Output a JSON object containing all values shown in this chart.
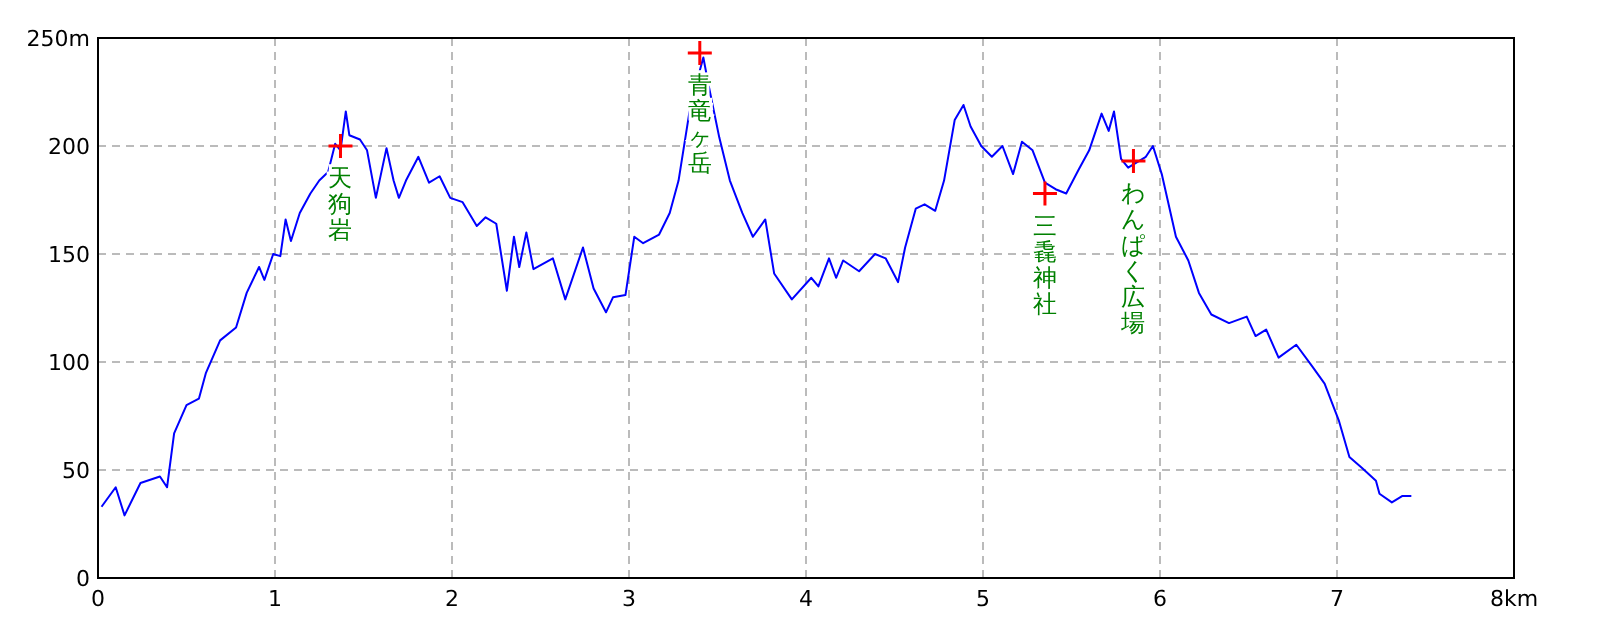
{
  "chart_data": {
    "type": "line",
    "x": [
      0.02,
      0.1,
      0.15,
      0.24,
      0.35,
      0.39,
      0.43,
      0.5,
      0.57,
      0.61,
      0.69,
      0.78,
      0.84,
      0.91,
      0.94,
      0.99,
      1.03,
      1.06,
      1.09,
      1.14,
      1.2,
      1.25,
      1.3,
      1.34,
      1.37,
      1.4,
      1.42,
      1.48,
      1.52,
      1.57,
      1.63,
      1.67,
      1.7,
      1.74,
      1.81,
      1.87,
      1.93,
      1.99,
      2.06,
      2.14,
      2.19,
      2.25,
      2.31,
      2.35,
      2.38,
      2.42,
      2.46,
      2.57,
      2.64,
      2.74,
      2.8,
      2.87,
      2.91,
      2.98,
      3.03,
      3.08,
      3.17,
      3.23,
      3.28,
      3.34,
      3.4,
      3.42,
      3.45,
      3.51,
      3.57,
      3.64,
      3.7,
      3.77,
      3.82,
      3.92,
      4.03,
      4.07,
      4.13,
      4.17,
      4.21,
      4.3,
      4.39,
      4.45,
      4.52,
      4.56,
      4.62,
      4.67,
      4.73,
      4.78,
      4.84,
      4.89,
      4.93,
      4.99,
      5.05,
      5.11,
      5.17,
      5.22,
      5.28,
      5.35,
      5.41,
      5.47,
      5.54,
      5.6,
      5.67,
      5.71,
      5.74,
      5.78,
      5.82,
      5.92,
      5.96,
      6.01,
      6.09,
      6.16,
      6.22,
      6.29,
      6.39,
      6.49,
      6.54,
      6.6,
      6.67,
      6.77,
      6.86,
      6.93,
      7.01,
      7.07,
      7.14,
      7.22,
      7.24,
      7.31,
      7.37,
      7.42
    ],
    "series": [
      {
        "color": "#0000ff",
        "values": [
          33,
          42,
          29,
          44,
          47,
          42,
          67,
          80,
          83,
          95,
          110,
          116,
          132,
          144,
          138,
          150,
          149,
          166,
          156,
          169,
          178,
          184,
          188,
          201,
          198,
          216,
          205,
          203,
          198,
          176,
          199,
          184,
          176,
          184,
          195,
          183,
          186,
          176,
          174,
          163,
          167,
          164,
          133,
          158,
          144,
          160,
          143,
          148,
          129,
          153,
          134,
          123,
          130,
          131,
          158,
          155,
          159,
          169,
          184,
          215,
          235,
          241,
          228,
          204,
          184,
          169,
          158,
          166,
          141,
          129,
          139,
          135,
          148,
          139,
          147,
          142,
          150,
          148,
          137,
          153,
          171,
          173,
          170,
          184,
          212,
          219,
          209,
          200,
          195,
          200,
          187,
          202,
          198,
          183,
          180,
          178,
          189,
          198,
          215,
          207,
          216,
          194,
          190,
          195,
          200,
          187,
          158,
          147,
          132,
          122,
          118,
          121,
          112,
          115,
          102,
          108,
          98,
          90,
          73,
          56,
          51,
          45,
          39,
          35,
          38,
          38
        ]
      }
    ],
    "xlim": [
      0,
      8
    ],
    "ylim": [
      0,
      250
    ],
    "xticks": [
      0,
      1,
      2,
      3,
      4,
      5,
      6,
      7,
      {
        "value": 8,
        "label": "8km"
      }
    ],
    "yticks": [
      0,
      50,
      100,
      150,
      200,
      {
        "value": 250,
        "label": "250m"
      }
    ],
    "grid": true,
    "marker": "none",
    "line_style": "solid",
    "annotations": [
      {
        "text": "天狗岩",
        "x": 1.37,
        "y": 200
      },
      {
        "text": "青竜ヶ岳",
        "x": 3.4,
        "y": 243
      },
      {
        "text": "三毳神社",
        "x": 5.35,
        "y": 178
      },
      {
        "text": "わんぱく広場",
        "x": 5.85,
        "y": 193
      }
    ]
  }
}
